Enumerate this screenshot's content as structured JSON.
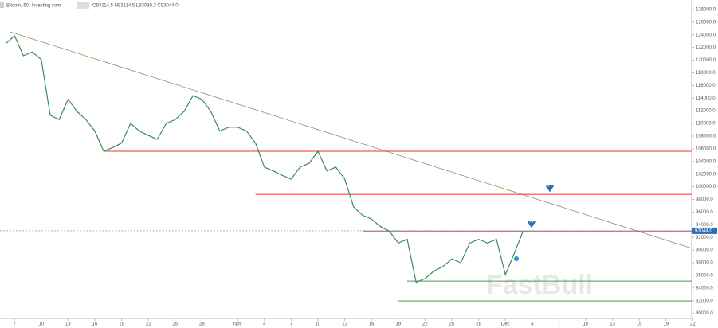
{
  "chart_data": {
    "type": "line",
    "title": "Bitcoin, 60, Investing.com",
    "ohlc": "O93114.5 H93114.5 L93039.3 C93044.0",
    "watermark": "FastBull",
    "categories": [
      null,
      "7",
      null,
      null,
      "10",
      null,
      null,
      "13",
      null,
      null,
      "16",
      null,
      null,
      "19",
      null,
      null,
      "22",
      null,
      null,
      "25",
      null,
      null,
      "28",
      null,
      null,
      null,
      "Nov",
      null,
      null,
      "4",
      null,
      null,
      "7",
      null,
      null,
      "10",
      null,
      null,
      "13",
      null,
      null,
      "16",
      null,
      null,
      "19",
      null,
      null,
      "22",
      null,
      null,
      "25",
      null,
      null,
      "28",
      null,
      null,
      "Dec",
      null,
      null,
      "4",
      null,
      null,
      "7",
      null,
      null,
      "10",
      null,
      null,
      "13",
      null,
      null,
      "16",
      null,
      null,
      "19",
      null,
      null,
      "22"
    ],
    "series": [
      {
        "name": "Bitcoin",
        "color": "#3a8a5a",
        "values": [
          122600,
          123850,
          120700,
          121300,
          120100,
          111300,
          110600,
          113800,
          111900,
          110600,
          108800,
          105600,
          106200,
          106900,
          110000,
          108800,
          108100,
          107500,
          110000,
          110600,
          111900,
          114400,
          113800,
          111900,
          108800,
          109400,
          109400,
          108800,
          106900,
          103100,
          102500,
          101800,
          101200,
          103100,
          103700,
          105600,
          102500,
          103100,
          101200,
          96800,
          95500,
          94900,
          93700,
          93000,
          91100,
          91700,
          84900,
          85500,
          86700,
          87400,
          88600,
          88000,
          91100,
          91700,
          91100,
          91700,
          86100,
          89500,
          93044,
          null,
          null,
          null,
          null,
          null,
          null,
          null,
          null,
          null,
          null,
          null,
          null,
          null,
          null,
          null,
          null,
          null,
          null,
          null
        ]
      }
    ],
    "ylim": [
      79200,
      129500
    ],
    "yticks": [
      {
        "value": 128000,
        "label": "128000.0"
      },
      {
        "value": 126000,
        "label": "126000.0"
      },
      {
        "value": 124000,
        "label": "124000.0"
      },
      {
        "value": 122000,
        "label": "122000.0"
      },
      {
        "value": 120000,
        "label": "120000.0"
      },
      {
        "value": 118000,
        "label": "118000.0"
      },
      {
        "value": 116000,
        "label": "116000.0"
      },
      {
        "value": 114000,
        "label": "114000.0"
      },
      {
        "value": 112000,
        "label": "112000.0"
      },
      {
        "value": 110000,
        "label": "110000.0"
      },
      {
        "value": 108000,
        "label": "108000.0"
      },
      {
        "value": 106000,
        "label": "106000.0"
      },
      {
        "value": 104000,
        "label": "104000.0"
      },
      {
        "value": 102000,
        "label": "102000.0"
      },
      {
        "value": 100000,
        "label": "100000.0"
      },
      {
        "value": 98000,
        "label": "98000.0"
      },
      {
        "value": 96000,
        "label": "96000.0"
      },
      {
        "value": 94000,
        "label": "94000.0"
      },
      {
        "value": 92000,
        "label": "92000.0"
      },
      {
        "value": 90000,
        "label": "90000.0"
      },
      {
        "value": 88000,
        "label": "88000.0"
      },
      {
        "value": 86000,
        "label": "86000.0"
      },
      {
        "value": 84000,
        "label": "84000.0"
      },
      {
        "value": 82000,
        "label": "82000.0"
      },
      {
        "value": 80000,
        "label": "80000.0"
      }
    ],
    "last_price": {
      "value": 93044,
      "label": "93044.0"
    },
    "levels": [
      {
        "value": 105600,
        "start": 11,
        "color": "#e53935"
      },
      {
        "value": 98800,
        "start": 28,
        "color": "#e53935"
      },
      {
        "value": 93000,
        "start": 40,
        "color": "#e53935"
      },
      {
        "value": 85100,
        "start": 45,
        "color": "#43a047"
      },
      {
        "value": 81950,
        "start": 44,
        "color": "#43a047"
      }
    ],
    "trendline": {
      "color": "#8e8e5a",
      "start": {
        "index": 0.45,
        "value": 124500
      },
      "end": {
        "index": 76.9,
        "value": 90270
      }
    },
    "grid": false
  }
}
